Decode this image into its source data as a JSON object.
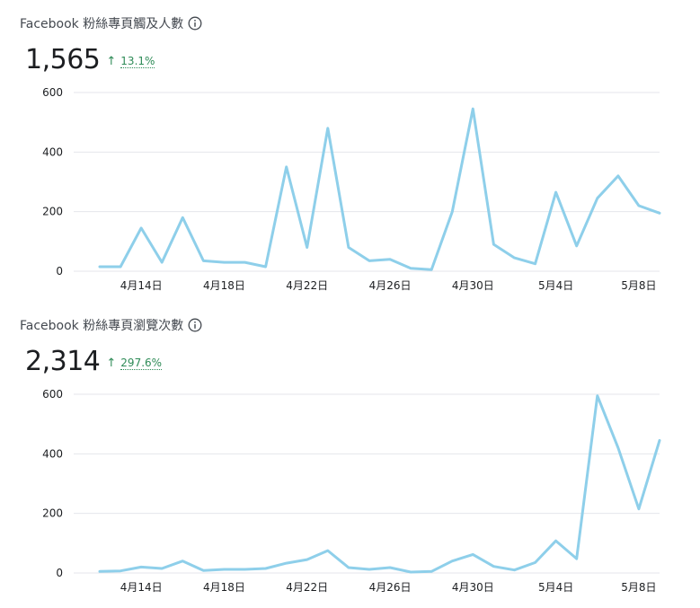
{
  "colors": {
    "line": "#8ecfea",
    "grid": "#e4e6eb",
    "positive": "#2e8b57"
  },
  "icons": {
    "info": "info-circle-icon",
    "trend": "arrow-up-icon"
  },
  "chart_data": [
    {
      "type": "line",
      "title": "Facebook 粉絲專頁觸及人數",
      "total": "1,565",
      "change": "13.1%",
      "change_direction": "up",
      "x": [
        "4月12日",
        "4月13日",
        "4月14日",
        "4月15日",
        "4月16日",
        "4月17日",
        "4月18日",
        "4月19日",
        "4月20日",
        "4月21日",
        "4月22日",
        "4月23日",
        "4月24日",
        "4月25日",
        "4月26日",
        "4月27日",
        "4月28日",
        "4月29日",
        "4月30日",
        "5月1日",
        "5月2日",
        "5月3日",
        "5月4日",
        "5月5日",
        "5月6日",
        "5月7日",
        "5月8日",
        "5月9日"
      ],
      "series": [
        {
          "values": [
            15,
            15,
            145,
            30,
            180,
            35,
            30,
            30,
            15,
            350,
            80,
            480,
            80,
            35,
            40,
            10,
            5,
            200,
            545,
            90,
            45,
            25,
            265,
            85,
            245,
            320,
            220,
            195
          ]
        }
      ],
      "x_tick_labels": [
        "4月14日",
        "4月18日",
        "4月22日",
        "4月26日",
        "4月30日",
        "5月4日",
        "5月8日"
      ],
      "y_ticks": [
        "0",
        "200",
        "400",
        "600"
      ],
      "ylim": [
        0,
        600
      ],
      "grid": true,
      "xlabel": "",
      "ylabel": ""
    },
    {
      "type": "line",
      "title": "Facebook 粉絲專頁瀏覽次數",
      "total": "2,314",
      "change": "297.6%",
      "change_direction": "up",
      "x": [
        "4月12日",
        "4月13日",
        "4月14日",
        "4月15日",
        "4月16日",
        "4月17日",
        "4月18日",
        "4月19日",
        "4月20日",
        "4月21日",
        "4月22日",
        "4月23日",
        "4月24日",
        "4月25日",
        "4月26日",
        "4月27日",
        "4月28日",
        "4月29日",
        "4月30日",
        "5月1日",
        "5月2日",
        "5月3日",
        "5月4日",
        "5月5日",
        "5月6日",
        "5月7日",
        "5月8日",
        "5月9日"
      ],
      "series": [
        {
          "values": [
            5,
            7,
            20,
            15,
            40,
            8,
            12,
            12,
            15,
            33,
            45,
            75,
            18,
            12,
            18,
            3,
            5,
            40,
            62,
            22,
            10,
            35,
            108,
            48,
            595,
            420,
            215,
            445
          ]
        }
      ],
      "x_tick_labels": [
        "4月14日",
        "4月18日",
        "4月22日",
        "4月26日",
        "4月30日",
        "5月4日",
        "5月8日"
      ],
      "y_ticks": [
        "0",
        "200",
        "400",
        "600"
      ],
      "ylim": [
        0,
        600
      ],
      "grid": true,
      "xlabel": "",
      "ylabel": ""
    }
  ]
}
